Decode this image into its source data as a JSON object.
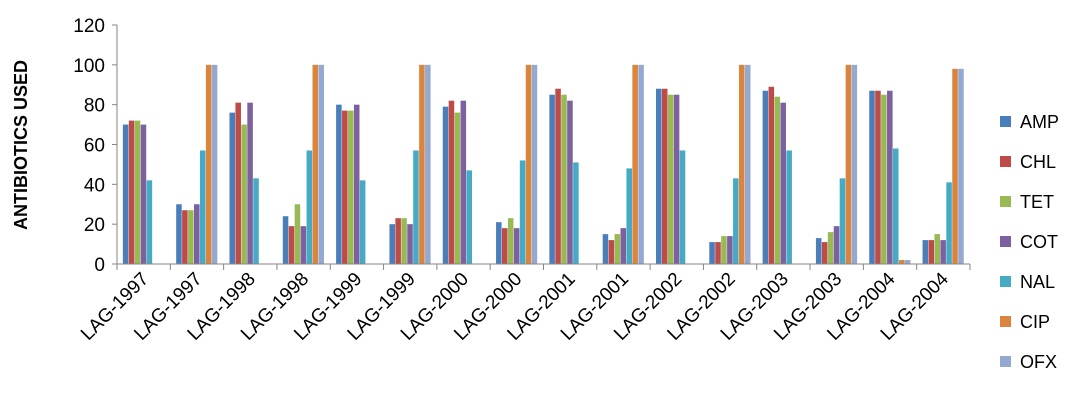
{
  "chart_data": {
    "type": "bar",
    "title": "",
    "xlabel": "",
    "ylabel": "ANTIBIOTICS USED",
    "ylim": [
      0,
      120
    ],
    "yticks": [
      0,
      20,
      40,
      60,
      80,
      100,
      120
    ],
    "grid": false,
    "legend_position": "right",
    "categories": [
      "LAG-1997",
      "LAG-1997",
      "LAG-1998",
      "LAG-1998",
      "LAG-1999",
      "LAG-1999",
      "LAG-2000",
      "LAG-2000",
      "LAG-2001",
      "LAG-2001",
      "LAG-2002",
      "LAG-2002",
      "LAG-2003",
      "LAG-2003",
      "LAG-2004",
      "LAG-2004"
    ],
    "series": [
      {
        "name": "AMP",
        "color": "#4A7EBB",
        "values": [
          70,
          30,
          76,
          24,
          80,
          20,
          79,
          21,
          85,
          15,
          88,
          11,
          87,
          13,
          87,
          12
        ]
      },
      {
        "name": "CHL",
        "color": "#BE4B48",
        "values": [
          72,
          27,
          81,
          19,
          77,
          23,
          82,
          18,
          88,
          12,
          88,
          11,
          89,
          11,
          87,
          12
        ]
      },
      {
        "name": "TET",
        "color": "#98B954",
        "values": [
          72,
          27,
          70,
          30,
          77,
          23,
          76,
          23,
          85,
          15,
          85,
          14,
          84,
          16,
          85,
          15
        ]
      },
      {
        "name": "COT",
        "color": "#7D60A0",
        "values": [
          70,
          30,
          81,
          19,
          80,
          20,
          82,
          18,
          82,
          18,
          85,
          14,
          81,
          19,
          87,
          12
        ]
      },
      {
        "name": "NAL",
        "color": "#46AAC5",
        "values": [
          42,
          57,
          43,
          57,
          42,
          57,
          47,
          52,
          51,
          48,
          57,
          43,
          57,
          43,
          58,
          41
        ]
      },
      {
        "name": "CIP",
        "color": "#DB843D",
        "values": [
          0,
          100,
          0,
          100,
          0,
          100,
          0,
          100,
          0,
          100,
          0,
          100,
          0,
          100,
          2,
          98
        ]
      },
      {
        "name": "OFX",
        "color": "#93A9CF",
        "values": [
          0,
          100,
          0,
          100,
          0,
          100,
          0,
          100,
          0,
          100,
          0,
          100,
          0,
          100,
          2,
          98
        ]
      }
    ]
  }
}
